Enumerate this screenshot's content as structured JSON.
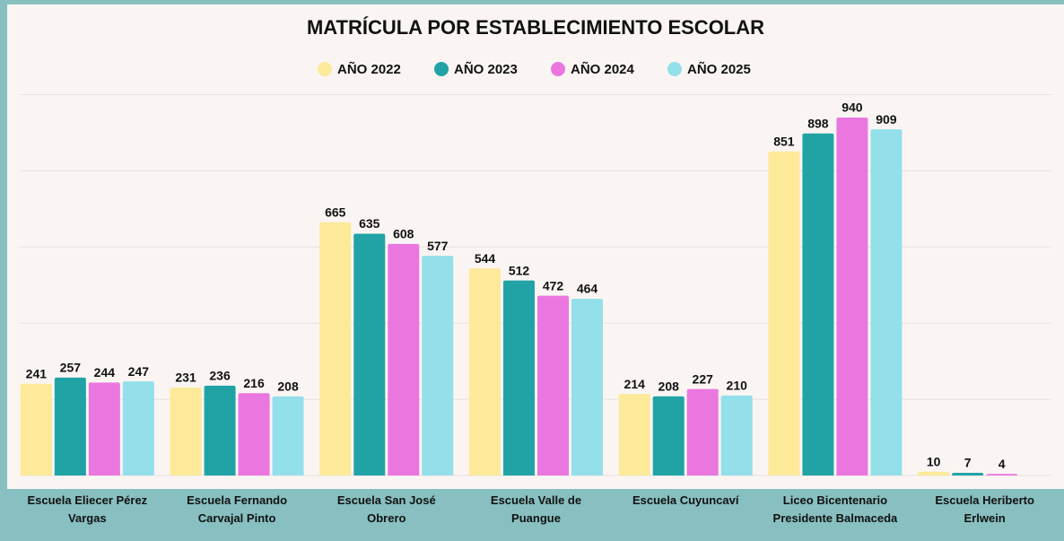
{
  "chart_data": {
    "type": "bar",
    "title": "MATRÍCULA POR ESTABLECIMIENTO ESCOLAR",
    "categories": [
      "Escuela Eliecer Pérez Vargas",
      "Escuela Fernando Carvajal Pinto",
      "Escuela San José Obrero",
      "Escuela Valle de Puangue",
      "Escuela Cuyuncaví",
      "Liceo Bicentenario Presidente Balmaceda",
      "Escuela Heriberto Erlwein"
    ],
    "series": [
      {
        "name": "AÑO 2022",
        "color": "#fde99a",
        "values": [
          241,
          231,
          665,
          544,
          214,
          851,
          10
        ]
      },
      {
        "name": "AÑO 2023",
        "color": "#21a3a6",
        "values": [
          257,
          236,
          635,
          512,
          208,
          898,
          7
        ]
      },
      {
        "name": "AÑO 2024",
        "color": "#ea77e0",
        "values": [
          244,
          216,
          608,
          472,
          227,
          940,
          4
        ]
      },
      {
        "name": "AÑO 2025",
        "color": "#93dfea",
        "values": [
          247,
          208,
          577,
          464,
          210,
          909,
          null
        ]
      }
    ],
    "ylim": [
      0,
      1000
    ],
    "yticks": [
      0,
      200,
      400,
      600,
      800,
      1000
    ],
    "grid": true,
    "legend": "top"
  }
}
